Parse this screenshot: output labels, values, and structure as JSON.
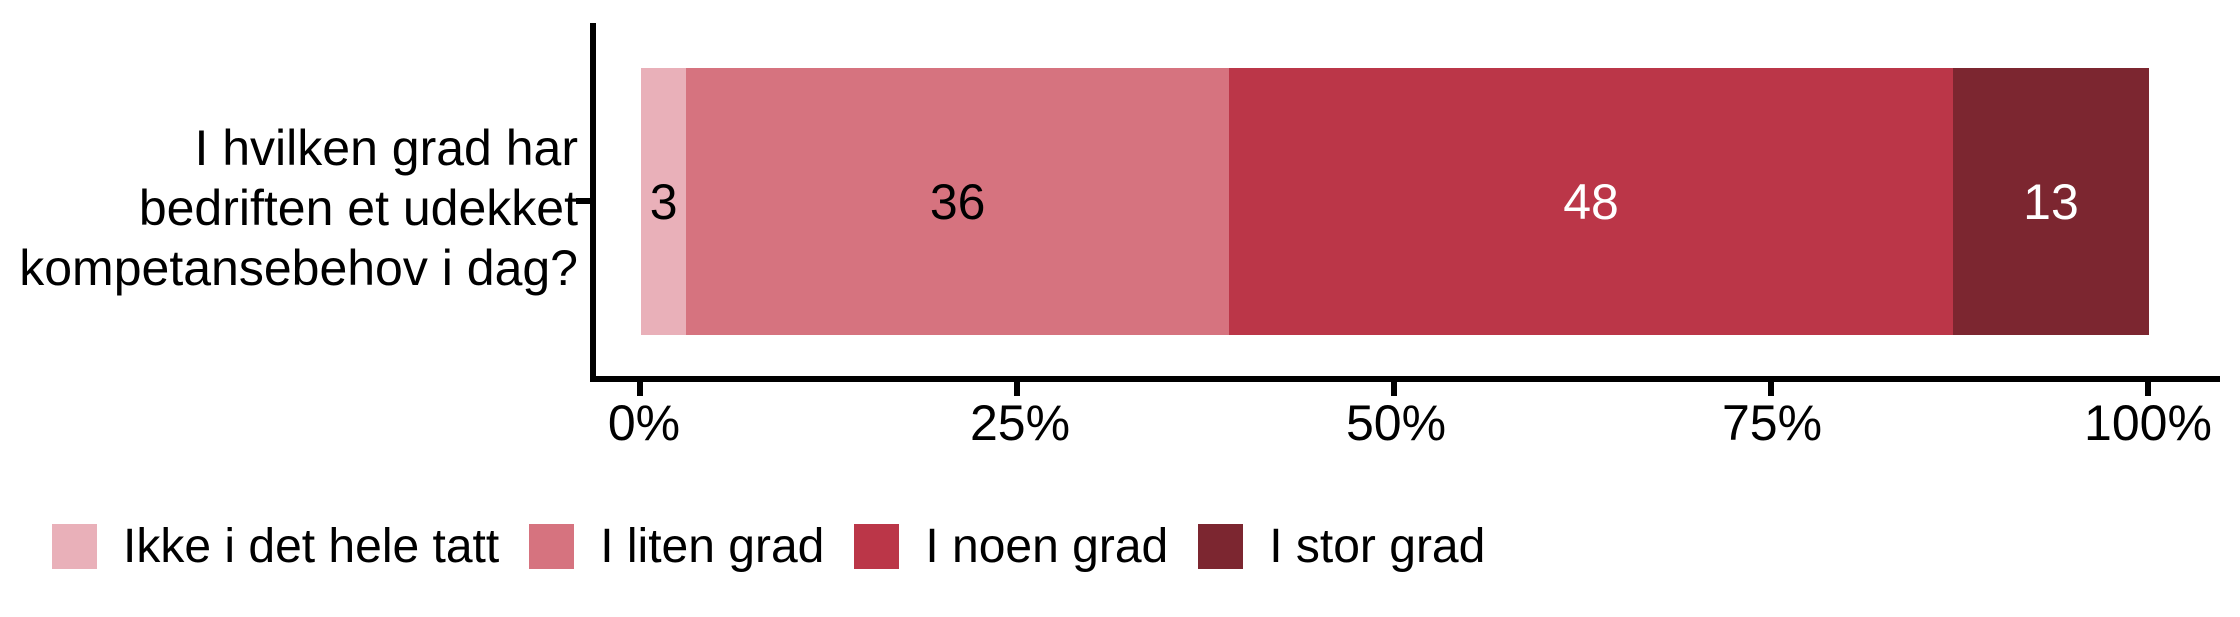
{
  "figure": {
    "background": "#ffffff",
    "axis_color": "#000000"
  },
  "axis": {
    "y_label_lines": [
      "I hvilken grad har",
      "bedriften et udekket",
      "kompetansebehov i dag?"
    ]
  },
  "chart_data": {
    "type": "bar",
    "orientation": "horizontal_stacked",
    "title": "",
    "categories": [
      "I hvilken grad har bedriften et udekket kompetansebehov i dag?"
    ],
    "series": [
      {
        "name": "Ikke i det hele tatt",
        "values": [
          3
        ],
        "color": "#e9b0b9",
        "label_color": "#000000"
      },
      {
        "name": "I liten grad",
        "values": [
          36
        ],
        "color": "#d6737f",
        "label_color": "#000000"
      },
      {
        "name": "I noen grad",
        "values": [
          48
        ],
        "color": "#bb3648",
        "label_color": "#ffffff"
      },
      {
        "name": "I stor grad",
        "values": [
          13
        ],
        "color": "#7c2630",
        "label_color": "#ffffff"
      }
    ],
    "xlim": [
      0,
      100
    ],
    "x_tick_labels": [
      "0%",
      "25%",
      "50%",
      "75%",
      "100%"
    ],
    "grid": false,
    "legend_position": "bottom",
    "value_labels_shown": true
  }
}
